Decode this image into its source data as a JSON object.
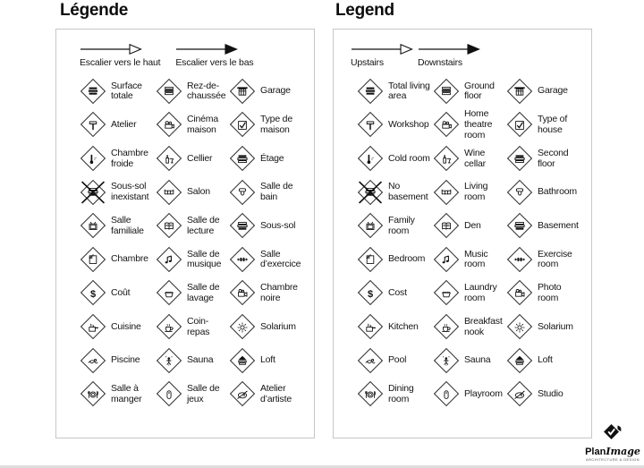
{
  "panels": [
    {
      "title": "Légende",
      "arrows": [
        {
          "label": "Escalier vers le haut",
          "style": "open"
        },
        {
          "label": "Escalier vers le bas",
          "style": "filled"
        }
      ],
      "items": [
        {
          "icon": "stack-filled-icon",
          "label": "Surface totale"
        },
        {
          "icon": "stack-middle-icon",
          "label": "Rez-de-chaussée"
        },
        {
          "icon": "garage-icon",
          "label": "Garage"
        },
        {
          "icon": "hammer-icon",
          "label": "Atelier"
        },
        {
          "icon": "projector-icon",
          "label": "Cinéma maison"
        },
        {
          "icon": "checkbox-icon",
          "label": "Type de maison"
        },
        {
          "icon": "thermometer-icon",
          "label": "Chambre froide"
        },
        {
          "icon": "wine-icon",
          "label": "Cellier"
        },
        {
          "icon": "stack-top-icon",
          "label": "Étage"
        },
        {
          "icon": "no-basement-icon",
          "label": "Sous-sol inexistant"
        },
        {
          "icon": "sofa-icon",
          "label": "Salon"
        },
        {
          "icon": "toilet-icon",
          "label": "Salle de bain"
        },
        {
          "icon": "tv-icon",
          "label": "Salle familiale"
        },
        {
          "icon": "book-icon",
          "label": "Salle de lecture"
        },
        {
          "icon": "stack-bottom-icon",
          "label": "Sous-sol"
        },
        {
          "icon": "bed-icon",
          "label": "Chambre"
        },
        {
          "icon": "music-note-icon",
          "label": "Salle de musique"
        },
        {
          "icon": "dumbbell-icon",
          "label": "Salle d’exercice"
        },
        {
          "icon": "dollar-icon",
          "label": "Coût"
        },
        {
          "icon": "washbasin-icon",
          "label": "Salle de lavage"
        },
        {
          "icon": "movie-camera-icon",
          "label": "Chambre noire"
        },
        {
          "icon": "cooking-pot-icon",
          "label": "Cuisine"
        },
        {
          "icon": "coffee-cup-icon",
          "label": "Coin-repas"
        },
        {
          "icon": "sun-icon",
          "label": "Solarium"
        },
        {
          "icon": "swimmer-icon",
          "label": "Piscine"
        },
        {
          "icon": "sauna-person-icon",
          "label": "Sauna"
        },
        {
          "icon": "loft-icon",
          "label": "Loft"
        },
        {
          "icon": "dinner-plate-icon",
          "label": "Salle à manger"
        },
        {
          "icon": "toy-icon",
          "label": "Salle de jeux"
        },
        {
          "icon": "palette-icon",
          "label": "Atelier d’artiste"
        }
      ]
    },
    {
      "title": "Legend",
      "arrows": [
        {
          "label": "Upstairs",
          "style": "open"
        },
        {
          "label": "Downstairs",
          "style": "filled"
        }
      ],
      "items": [
        {
          "icon": "stack-filled-icon",
          "label": "Total living area"
        },
        {
          "icon": "stack-middle-icon",
          "label": "Ground floor"
        },
        {
          "icon": "garage-icon",
          "label": "Garage"
        },
        {
          "icon": "hammer-icon",
          "label": "Workshop"
        },
        {
          "icon": "projector-icon",
          "label": "Home theatre room"
        },
        {
          "icon": "checkbox-icon",
          "label": "Type of house"
        },
        {
          "icon": "thermometer-icon",
          "label": "Cold room"
        },
        {
          "icon": "wine-icon",
          "label": "Wine cellar"
        },
        {
          "icon": "stack-top-icon",
          "label": "Second floor"
        },
        {
          "icon": "no-basement-icon",
          "label": "No basement"
        },
        {
          "icon": "sofa-icon",
          "label": "Living room"
        },
        {
          "icon": "toilet-icon",
          "label": "Bathroom"
        },
        {
          "icon": "tv-icon",
          "label": "Family room"
        },
        {
          "icon": "book-icon",
          "label": "Den"
        },
        {
          "icon": "stack-bottom-icon",
          "label": "Basement"
        },
        {
          "icon": "bed-icon",
          "label": "Bedroom"
        },
        {
          "icon": "music-note-icon",
          "label": "Music room"
        },
        {
          "icon": "dumbbell-icon",
          "label": "Exercise room"
        },
        {
          "icon": "dollar-icon",
          "label": "Cost"
        },
        {
          "icon": "washbasin-icon",
          "label": "Laundry room"
        },
        {
          "icon": "movie-camera-icon",
          "label": "Photo room"
        },
        {
          "icon": "cooking-pot-icon",
          "label": "Kitchen"
        },
        {
          "icon": "coffee-cup-icon",
          "label": "Breakfast nook"
        },
        {
          "icon": "sun-icon",
          "label": "Solarium"
        },
        {
          "icon": "swimmer-icon",
          "label": "Pool"
        },
        {
          "icon": "sauna-person-icon",
          "label": "Sauna"
        },
        {
          "icon": "loft-icon",
          "label": "Loft"
        },
        {
          "icon": "dinner-plate-icon",
          "label": "Dining room"
        },
        {
          "icon": "toy-icon",
          "label": "Playroom"
        },
        {
          "icon": "palette-icon",
          "label": "Studio"
        }
      ]
    }
  ],
  "logo": {
    "brand_plan": "Plan",
    "brand_image": "Image",
    "tagline": "ARCHITECTURE & DESIGN"
  },
  "colors": {
    "ink": "#111111",
    "panel_border": "#c6c6c6",
    "background": "#ffffff"
  }
}
